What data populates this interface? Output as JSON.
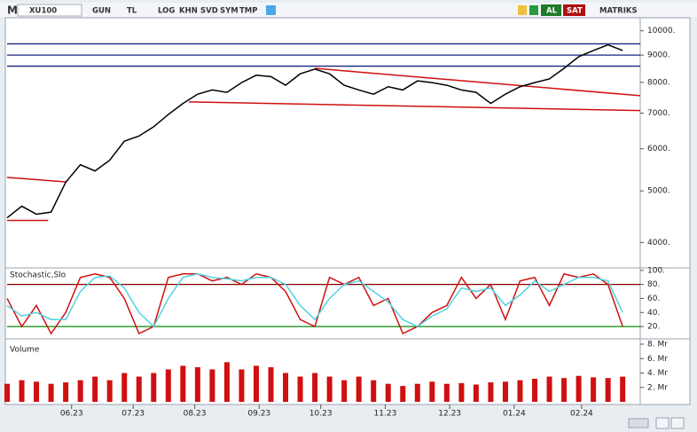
{
  "toolbar": {
    "logo": "M",
    "symbol": "XU100",
    "period": "GUN",
    "currency": "TL",
    "buttons": [
      "LOG",
      "KHN",
      "SVD",
      "SYM",
      "TMP"
    ],
    "buy": "AL",
    "sell": "SAT",
    "brand": "MATRIKS"
  },
  "chart_data": [
    {
      "type": "line",
      "log_scale": true,
      "x": [
        0,
        5,
        10,
        15,
        20,
        25,
        30,
        35,
        40,
        45,
        50,
        55,
        60,
        65,
        70,
        75,
        80,
        85,
        90,
        95,
        100,
        105,
        110,
        115,
        120,
        125,
        130,
        135,
        140,
        145,
        150,
        155,
        160,
        165,
        170,
        175,
        180,
        185,
        190,
        195,
        200,
        205,
        210
      ],
      "series": [
        {
          "color": "#000000",
          "values": [
            4450,
            4680,
            4520,
            4560,
            5190,
            5600,
            5450,
            5710,
            6200,
            6340,
            6600,
            6960,
            7300,
            7600,
            7740,
            7660,
            7990,
            8250,
            8200,
            7900,
            8300,
            8470,
            8300,
            7900,
            7740,
            7600,
            7850,
            7740,
            8050,
            7990,
            7900,
            7740,
            7660,
            7300,
            7600,
            7850,
            7990,
            8120,
            8500,
            8940,
            9180,
            9410,
            9180
          ]
        }
      ],
      "xlim": [
        0,
        216
      ],
      "ylim": [
        3610,
        10500
      ],
      "yticks": [
        {
          "value": 4000,
          "label": "4000."
        },
        {
          "value": 5000,
          "label": "5000."
        },
        {
          "value": 6000,
          "label": "6000."
        },
        {
          "value": 7000,
          "label": "7000."
        },
        {
          "value": 8000,
          "label": "8000."
        },
        {
          "value": 9000,
          "label": "9000."
        },
        {
          "value": 10000,
          "label": "10000."
        }
      ],
      "hlines": [
        {
          "value": 9450,
          "color": "#1a237e"
        },
        {
          "value": 9000,
          "color": "#1a237e"
        },
        {
          "value": 8580,
          "color": "#1a237e"
        }
      ],
      "trendlines": [
        {
          "x": [
            0,
            20
          ],
          "y": [
            5300,
            5200
          ],
          "color": "#d01010"
        },
        {
          "x": [
            0,
            14
          ],
          "y": [
            4400,
            4400
          ],
          "color": "#d01010"
        },
        {
          "x": [
            105,
            216
          ],
          "y": [
            8500,
            7550
          ],
          "color": "#d01010"
        },
        {
          "x": [
            62,
            216
          ],
          "y": [
            7350,
            7080
          ],
          "color": "#d01010"
        }
      ]
    },
    {
      "type": "line",
      "title": "Stochastic,Slo",
      "x": [
        0,
        5,
        10,
        15,
        20,
        25,
        30,
        35,
        40,
        45,
        50,
        55,
        60,
        65,
        70,
        75,
        80,
        85,
        90,
        95,
        100,
        105,
        110,
        115,
        120,
        125,
        130,
        135,
        140,
        145,
        150,
        155,
        160,
        165,
        170,
        175,
        180,
        185,
        190,
        195,
        200,
        205,
        210
      ],
      "series": [
        {
          "color": "#d01010",
          "values": [
            60,
            20,
            50,
            10,
            40,
            90,
            95,
            90,
            60,
            10,
            20,
            90,
            95,
            95,
            85,
            90,
            80,
            95,
            90,
            70,
            30,
            20,
            90,
            80,
            90,
            50,
            60,
            10,
            20,
            40,
            50,
            90,
            60,
            80,
            30,
            85,
            90,
            50,
            95,
            90,
            95,
            80,
            20
          ]
        },
        {
          "color": "#4fd3e0",
          "values": [
            50,
            35,
            40,
            30,
            30,
            70,
            90,
            92,
            75,
            40,
            20,
            60,
            90,
            95,
            90,
            88,
            85,
            90,
            90,
            80,
            50,
            30,
            60,
            80,
            85,
            70,
            55,
            30,
            20,
            35,
            45,
            75,
            70,
            75,
            50,
            65,
            85,
            70,
            80,
            90,
            90,
            85,
            40
          ]
        }
      ],
      "xlim": [
        0,
        216
      ],
      "ylim": [
        5,
        101
      ],
      "yticks": [
        {
          "value": 20,
          "label": "20."
        },
        {
          "value": 40,
          "label": "40."
        },
        {
          "value": 60,
          "label": "60."
        },
        {
          "value": 80,
          "label": "80."
        },
        {
          "value": 100,
          "label": "100."
        }
      ],
      "hlines": [
        {
          "value": 80,
          "color": "#8b0000"
        },
        {
          "value": 20,
          "color": "#0a8a0a"
        }
      ]
    },
    {
      "type": "bar",
      "title": "Volume",
      "x": [
        0,
        5,
        10,
        15,
        20,
        25,
        30,
        35,
        40,
        45,
        50,
        55,
        60,
        65,
        70,
        75,
        80,
        85,
        90,
        95,
        100,
        105,
        110,
        115,
        120,
        125,
        130,
        135,
        140,
        145,
        150,
        155,
        160,
        165,
        170,
        175,
        180,
        185,
        190,
        195,
        200,
        205,
        210
      ],
      "values": [
        2.5,
        3,
        2.8,
        2.5,
        2.7,
        3,
        3.5,
        3,
        4,
        3.5,
        4,
        4.5,
        5,
        4.8,
        4.5,
        5.5,
        4.5,
        5,
        4.8,
        4,
        3.5,
        4,
        3.5,
        3,
        3.5,
        3,
        2.5,
        2.2,
        2.5,
        2.8,
        2.5,
        2.6,
        2.4,
        2.7,
        2.8,
        3,
        3.2,
        3.5,
        3.3,
        3.6,
        3.4,
        3.3,
        3.5
      ],
      "color": "#d01010",
      "xlim": [
        0,
        216
      ],
      "ylim": [
        0,
        8
      ],
      "yticks": [
        {
          "value": 2,
          "label": "2. Mr"
        },
        {
          "value": 4,
          "label": "4. Mr"
        },
        {
          "value": 6,
          "label": "6. Mr"
        },
        {
          "value": 8,
          "label": "8. Mr"
        }
      ],
      "xticks": [
        {
          "value": 22,
          "label": "06.23"
        },
        {
          "value": 43,
          "label": "07.23"
        },
        {
          "value": 64,
          "label": "08.23"
        },
        {
          "value": 86,
          "label": "09.23"
        },
        {
          "value": 107,
          "label": "10.23"
        },
        {
          "value": 129,
          "label": "11.23"
        },
        {
          "value": 151,
          "label": "12.23"
        },
        {
          "value": 173,
          "label": "01.24"
        },
        {
          "value": 196,
          "label": "02.24"
        }
      ]
    }
  ]
}
